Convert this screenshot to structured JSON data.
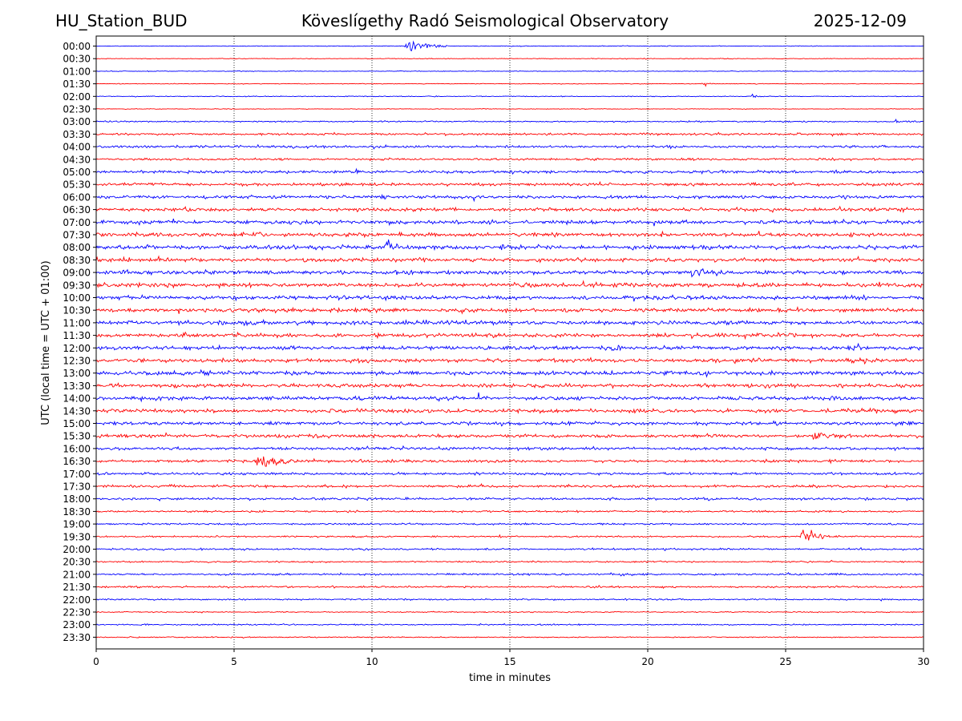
{
  "header": {
    "station": "HU_Station_BUD",
    "title": "Köveslígethy Radó Seismological Observatory",
    "date": "2025-12-09"
  },
  "chart_data": {
    "type": "line",
    "title": "Köveslígethy Radó Seismological Observatory",
    "xlabel": "time in minutes",
    "ylabel": "UTC (local time = UTC + 01:00)",
    "xlim": [
      0,
      30
    ],
    "xticks": [
      0,
      5,
      10,
      15,
      20,
      25,
      30
    ],
    "grid": "vertical dotted at each x tick",
    "line_colors": [
      "#0000ff",
      "#ff0000"
    ],
    "rows": [
      "00:00",
      "00:30",
      "01:00",
      "01:30",
      "02:00",
      "02:30",
      "03:00",
      "03:30",
      "04:00",
      "04:30",
      "05:00",
      "05:30",
      "06:00",
      "06:30",
      "07:00",
      "07:30",
      "08:00",
      "08:30",
      "09:00",
      "09:30",
      "10:00",
      "10:30",
      "11:00",
      "11:30",
      "12:00",
      "12:30",
      "13:00",
      "13:30",
      "14:00",
      "14:30",
      "15:00",
      "15:30",
      "16:00",
      "16:30",
      "17:00",
      "17:30",
      "18:00",
      "18:30",
      "19:00",
      "19:30",
      "20:00",
      "20:30",
      "21:00",
      "21:30",
      "22:00",
      "22:30",
      "23:00",
      "23:30"
    ],
    "noise_levels": [
      0.15,
      0.15,
      0.15,
      0.15,
      0.18,
      0.15,
      0.3,
      0.45,
      0.55,
      0.5,
      0.65,
      0.65,
      0.7,
      0.75,
      0.85,
      0.85,
      0.9,
      0.85,
      0.9,
      0.9,
      0.85,
      0.85,
      0.9,
      0.85,
      0.9,
      0.85,
      0.9,
      0.85,
      0.85,
      0.85,
      0.75,
      0.75,
      0.65,
      0.6,
      0.55,
      0.55,
      0.55,
      0.4,
      0.4,
      0.35,
      0.4,
      0.35,
      0.4,
      0.4,
      0.35,
      0.25,
      0.3,
      0.25
    ],
    "events": [
      {
        "row": "00:00",
        "minute": 11.2,
        "amplitude": 2.4,
        "duration_min": 1.6
      },
      {
        "row": "01:30",
        "minute": 22.0,
        "amplitude": 1.0,
        "duration_min": 0.4
      },
      {
        "row": "02:00",
        "minute": 23.8,
        "amplitude": 0.6,
        "duration_min": 0.4
      },
      {
        "row": "03:00",
        "minute": 29.0,
        "amplitude": 0.7,
        "duration_min": 1.0
      },
      {
        "row": "08:00",
        "minute": 10.5,
        "amplitude": 1.4,
        "duration_min": 1.0
      },
      {
        "row": "09:00",
        "minute": 21.6,
        "amplitude": 1.8,
        "duration_min": 1.4
      },
      {
        "row": "15:30",
        "minute": 26.0,
        "amplitude": 1.4,
        "duration_min": 1.2
      },
      {
        "row": "16:30",
        "minute": 5.8,
        "amplitude": 1.9,
        "duration_min": 2.2
      },
      {
        "row": "19:30",
        "minute": 25.6,
        "amplitude": 2.0,
        "duration_min": 1.4
      },
      {
        "row": "21:00",
        "minute": 19.0,
        "amplitude": 0.6,
        "duration_min": 0.6
      }
    ]
  }
}
